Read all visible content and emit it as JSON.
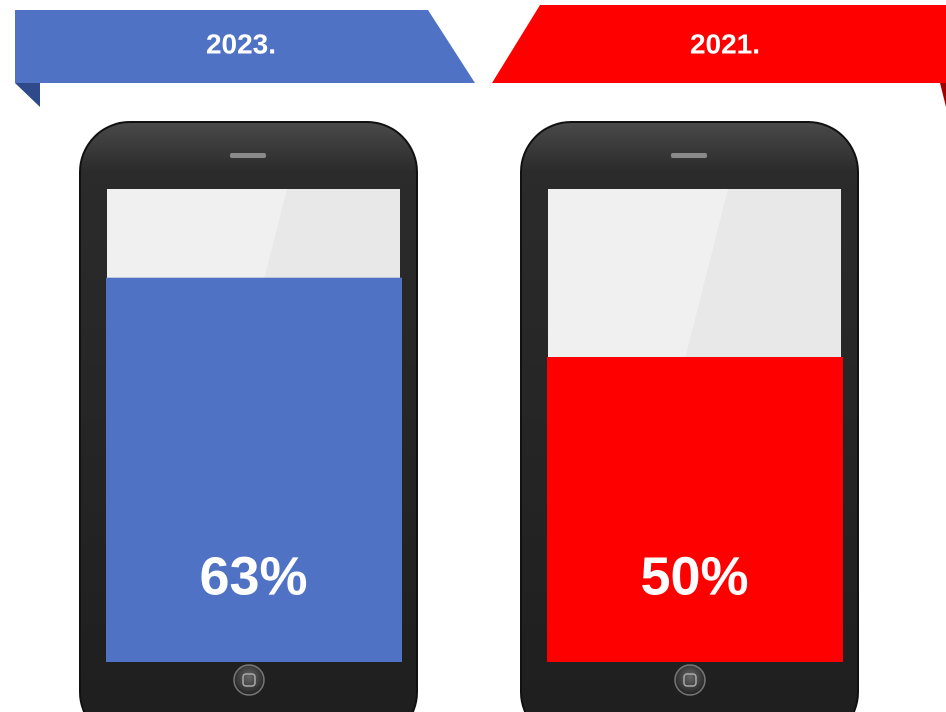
{
  "chart_data": {
    "type": "phone-fill",
    "categories": [
      "2023.",
      "2021."
    ],
    "values": [
      63,
      50
    ],
    "value_labels": [
      "63%",
      "50%"
    ],
    "colors": [
      "#4f72c4",
      "#ff0000"
    ]
  }
}
